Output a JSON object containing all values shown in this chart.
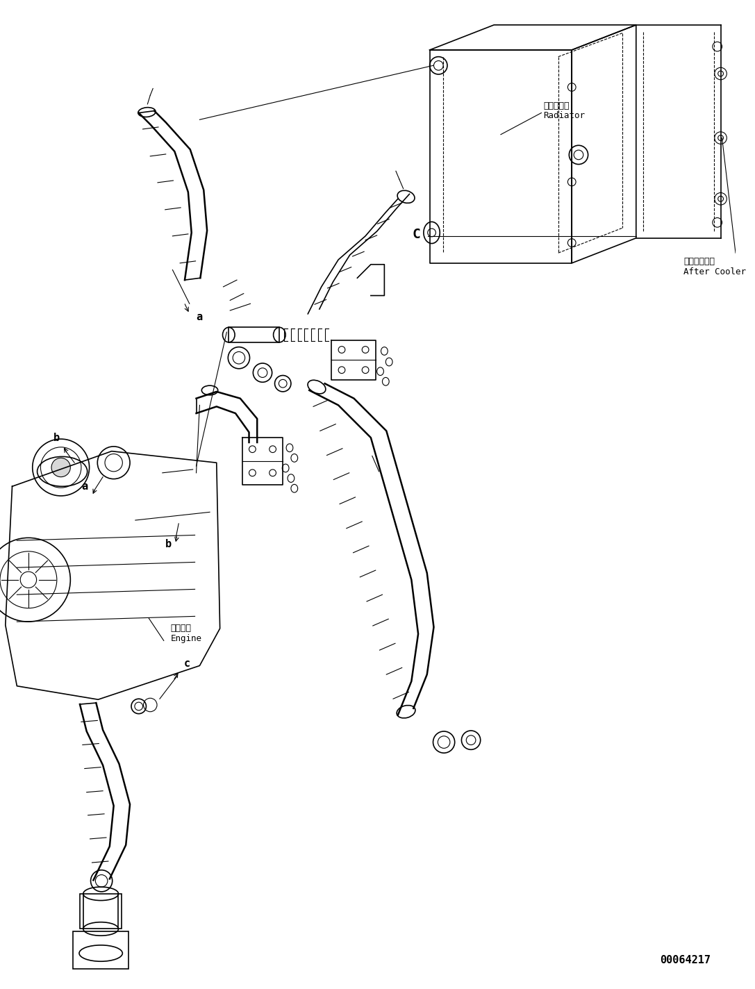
{
  "figure_width": 10.87,
  "figure_height": 14.24,
  "dpi": 100,
  "background_color": "#ffffff",
  "line_color": "#000000",
  "text_color": "#000000",
  "part_number": "00064217",
  "labels": {
    "radiator_jp": "ラジエータ",
    "radiator_en": "Radiator",
    "after_cooler_jp": "アフタクーラ",
    "after_cooler_en": "After Cooler",
    "engine_jp": "エンジン",
    "engine_en": "Engine",
    "label_a": "a",
    "label_b": "b",
    "label_c": "c",
    "label_C": "C"
  },
  "font_sizes": {
    "part_number": 11,
    "label": 11,
    "component_jp": 10,
    "component_en": 10
  }
}
